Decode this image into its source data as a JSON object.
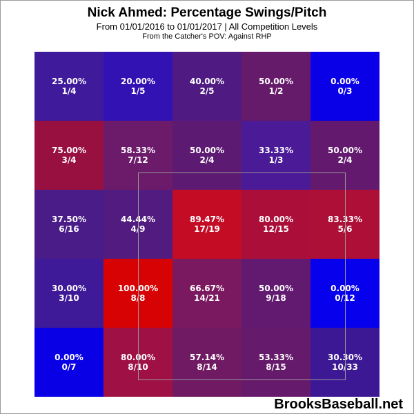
{
  "chart_data": {
    "type": "heatmap",
    "title": "Nick Ahmed: Percentage Swings/Pitch",
    "subtitle": "From 01/01/2016 to 01/01/2017 | All Competition Levels",
    "note": "From the Catcher's POV:   Against RHP",
    "rows": [
      [
        {
          "pct": "25.00%",
          "count": "1/4",
          "value": 25.0,
          "color": "#3f1b9b"
        },
        {
          "pct": "20.00%",
          "count": "1/5",
          "value": 20.0,
          "color": "#3312b3"
        },
        {
          "pct": "40.00%",
          "count": "2/5",
          "value": 40.0,
          "color": "#4f1b83"
        },
        {
          "pct": "50.00%",
          "count": "1/2",
          "value": 50.0,
          "color": "#651a6a"
        },
        {
          "pct": "0.00%",
          "count": "0/3",
          "value": 0.0,
          "color": "#0a00e8"
        }
      ],
      [
        {
          "pct": "75.00%",
          "count": "3/4",
          "value": 75.0,
          "color": "#98103f"
        },
        {
          "pct": "58.33%",
          "count": "7/12",
          "value": 58.33,
          "color": "#6c1a6a"
        },
        {
          "pct": "50.00%",
          "count": "2/4",
          "value": 50.0,
          "color": "#5d1a73"
        },
        {
          "pct": "33.33%",
          "count": "1/3",
          "value": 33.33,
          "color": "#4a1a97"
        },
        {
          "pct": "50.00%",
          "count": "2/4",
          "value": 50.0,
          "color": "#631a6e"
        }
      ],
      [
        {
          "pct": "37.50%",
          "count": "6/16",
          "value": 37.5,
          "color": "#4a1c88"
        },
        {
          "pct": "44.44%",
          "count": "4/9",
          "value": 44.44,
          "color": "#511b80"
        },
        {
          "pct": "89.47%",
          "count": "17/19",
          "value": 89.47,
          "color": "#c40c25"
        },
        {
          "pct": "80.00%",
          "count": "12/15",
          "value": 80.0,
          "color": "#ab0f39"
        },
        {
          "pct": "83.33%",
          "count": "5/6",
          "value": 83.33,
          "color": "#ad0f37"
        }
      ],
      [
        {
          "pct": "30.00%",
          "count": "3/10",
          "value": 30.0,
          "color": "#3e1998"
        },
        {
          "pct": "100.00%",
          "count": "8/8",
          "value": 100.0,
          "color": "#d70203"
        },
        {
          "pct": "66.67%",
          "count": "14/21",
          "value": 66.67,
          "color": "#7b1960"
        },
        {
          "pct": "50.00%",
          "count": "9/18",
          "value": 50.0,
          "color": "#621a71"
        },
        {
          "pct": "0.00%",
          "count": "0/12",
          "value": 0.0,
          "color": "#0600ed"
        }
      ],
      [
        {
          "pct": "0.00%",
          "count": "0/7",
          "value": 0.0,
          "color": "#0a00e6"
        },
        {
          "pct": "80.00%",
          "count": "8/10",
          "value": 80.0,
          "color": "#9f1145"
        },
        {
          "pct": "57.14%",
          "count": "8/14",
          "value": 57.14,
          "color": "#701a64"
        },
        {
          "pct": "53.33%",
          "count": "8/15",
          "value": 53.33,
          "color": "#661a6b"
        },
        {
          "pct": "30.30%",
          "count": "10/33",
          "value": 30.3,
          "color": "#3d1895"
        }
      ]
    ],
    "strike_zone": {
      "rows": [
        1,
        3
      ],
      "cols": [
        1,
        3
      ]
    },
    "legend": "none",
    "grid": false
  },
  "watermark": "BrooksBaseball.net"
}
